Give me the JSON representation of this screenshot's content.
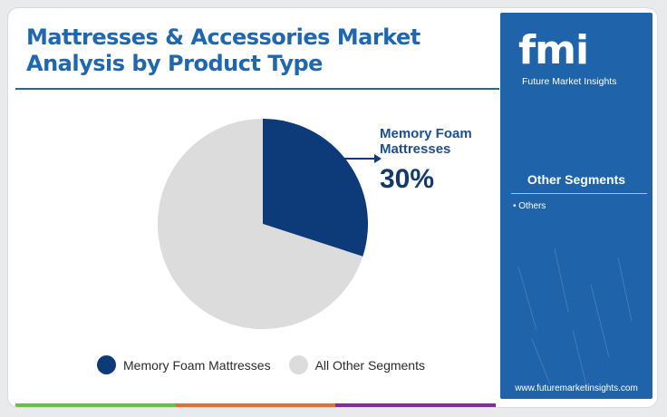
{
  "title": "Mattresses & Accessories Market Analysis by Product Type",
  "brand": {
    "logo": "fmi",
    "name": "Future Market Insights",
    "url": "www.futuremarketinsights.com"
  },
  "sidebar": {
    "heading": "Other Segments",
    "items": [
      "Others"
    ]
  },
  "callout": {
    "label": "Memory Foam Mattresses",
    "value": "30%"
  },
  "colors": {
    "primary": "#0d3a78",
    "secondary": "#dcdcdc",
    "title": "#1f67b1",
    "sidebar": "#1f64ab",
    "bar": [
      "#6cbf3f",
      "#e0702f",
      "#7a2fa3"
    ]
  },
  "chart_data": {
    "type": "pie",
    "title": "Mattresses & Accessories Market Analysis by Product Type",
    "categories": [
      "Memory Foam Mattresses",
      "All Other Segments"
    ],
    "values": [
      30,
      70
    ],
    "legend_position": "bottom"
  }
}
